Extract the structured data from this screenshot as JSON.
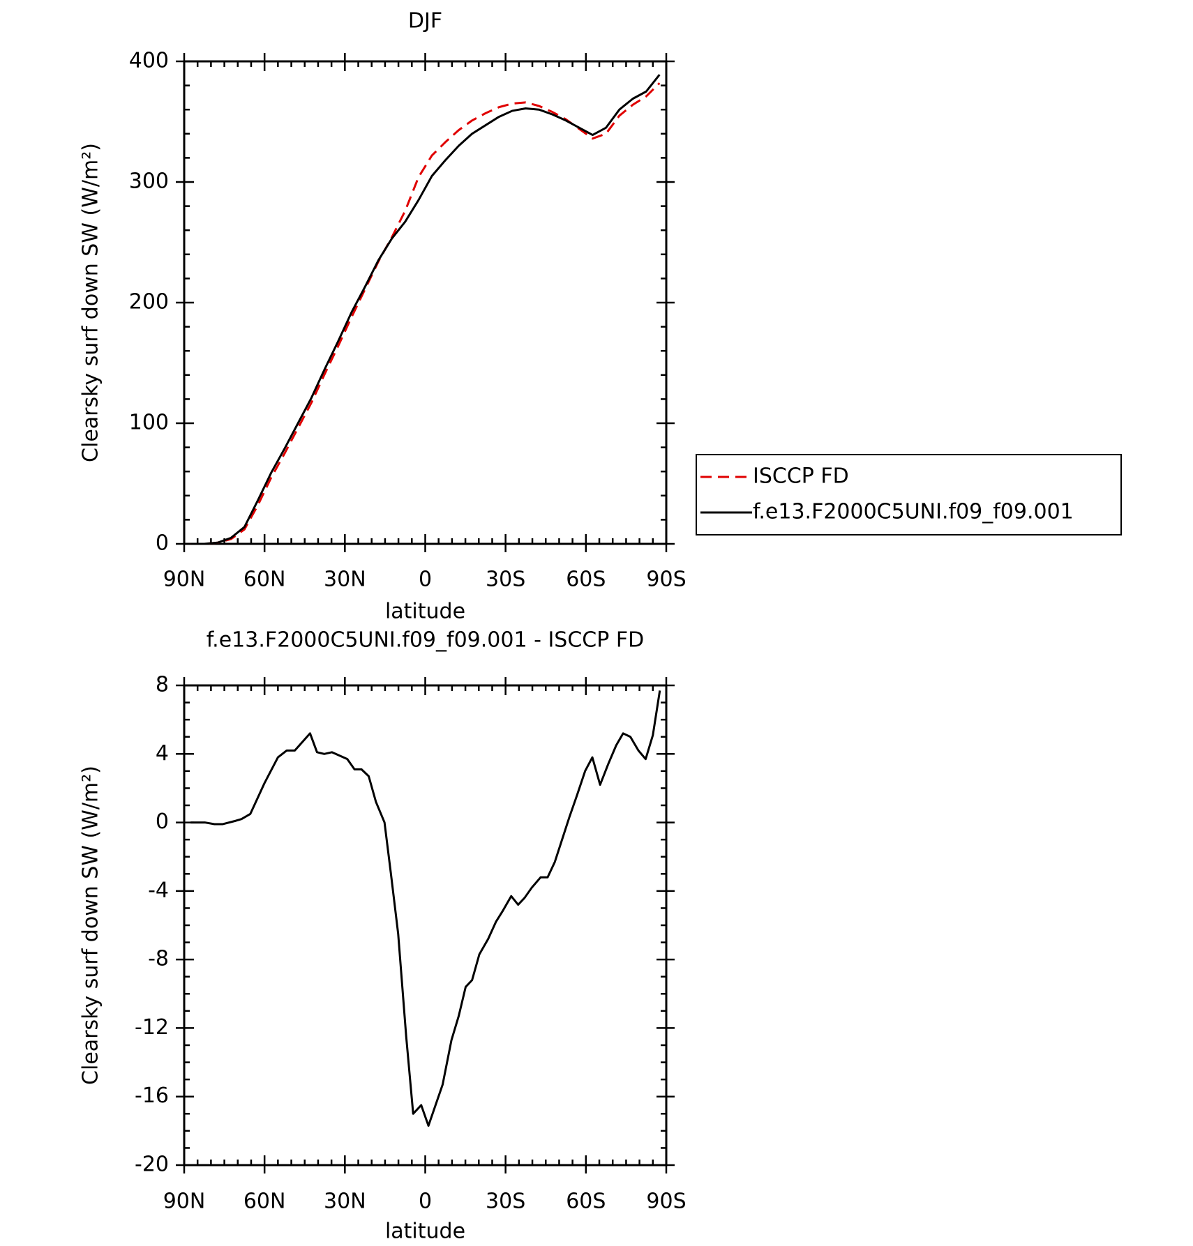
{
  "chart_data": [
    {
      "type": "line",
      "title": "DJF",
      "xlabel": "latitude",
      "ylabel": "Clearsky surf down SW (W/m²)",
      "x": [
        87.5,
        82.5,
        77.5,
        72.5,
        67.5,
        62.5,
        57.5,
        52.5,
        47.5,
        42.5,
        37.5,
        32.5,
        27.5,
        22.5,
        17.5,
        12.5,
        7.5,
        2.5,
        -2.5,
        -7.5,
        -12.5,
        -17.5,
        -22.5,
        -27.5,
        -32.5,
        -37.5,
        -42.5,
        -47.5,
        -52.5,
        -57.5,
        -62.5,
        -67.5,
        -72.5,
        -77.5,
        -82.5,
        -87.5
      ],
      "series": [
        {
          "name": "ISCCP FD",
          "color": "#e00000",
          "dash": "dashed",
          "values": [
            0,
            0,
            1,
            4,
            12,
            32,
            55,
            75,
            96,
            117,
            141,
            164,
            188,
            211,
            234,
            254,
            276,
            304,
            322,
            333,
            343,
            351,
            357,
            362,
            365,
            366,
            363,
            358,
            352,
            344,
            336,
            340,
            355,
            364,
            371,
            382
          ]
        },
        {
          "name": "f.e13.F2000C5UNI.f09_f09.001",
          "color": "#000000",
          "values": [
            0,
            0,
            1,
            5,
            14,
            36,
            59,
            79,
            100,
            121,
            145,
            168,
            192,
            213,
            235,
            253,
            267,
            285,
            305,
            318,
            330,
            340,
            347,
            354,
            359,
            361,
            360,
            356,
            351,
            345,
            339,
            345,
            360,
            369,
            375,
            389
          ]
        }
      ],
      "xlim": [
        90,
        -90
      ],
      "xticks": [
        {
          "value": 90,
          "label": "90N"
        },
        {
          "value": 60,
          "label": "60N"
        },
        {
          "value": 30,
          "label": "30N"
        },
        0,
        {
          "value": -30,
          "label": "30S"
        },
        {
          "value": -60,
          "label": "60S"
        },
        {
          "value": -90,
          "label": "90S"
        }
      ],
      "ylim": [
        0,
        400
      ],
      "yticks": [
        0,
        100,
        200,
        300,
        400
      ],
      "legend": "right"
    },
    {
      "type": "line",
      "title": "f.e13.F2000C5UNI.f09_f09.001 - ISCCP FD",
      "xlabel": "latitude",
      "ylabel": "Clearsky surf down SW (W/m²)",
      "x": [
        87.6,
        82.3,
        78.7,
        75.7,
        70.7,
        68.6,
        65.3,
        60,
        55,
        51.7,
        48.7,
        43,
        40.4,
        37.7,
        34.8,
        29.1,
        26.4,
        23.8,
        21.1,
        18.4,
        15.2,
        12.8,
        10.1,
        7.1,
        4.5,
        1.5,
        -1.2,
        -6.5,
        -9.8,
        -12.5,
        -15.1,
        -17.5,
        -20.2,
        -23.5,
        -26.4,
        -28.8,
        -32.1,
        -34.7,
        -37.1,
        -39.8,
        -43.1,
        -45.7,
        -48.4,
        -51.1,
        -53.8,
        -56.7,
        -59.7,
        -62.4,
        -65.3,
        -68.3,
        -71.3,
        -73.9,
        -76.6,
        -79.6,
        -82.3,
        -85,
        -87.6
      ],
      "color": "#000000",
      "values": [
        0,
        0,
        -0.1,
        -0.1,
        0.1,
        0.2,
        0.5,
        2.3,
        3.8,
        4.2,
        4.2,
        5.2,
        4.1,
        4,
        4.1,
        3.7,
        3.1,
        3.1,
        2.7,
        1.2,
        0,
        -3,
        -6.5,
        -12.5,
        -17,
        -16.5,
        -17.7,
        -15.3,
        -12.7,
        -11.3,
        -9.6,
        -9.2,
        -7.7,
        -6.8,
        -5.8,
        -5.2,
        -4.3,
        -4.8,
        -4.4,
        -3.8,
        -3.2,
        -3.2,
        -2.3,
        -1,
        0.3,
        1.6,
        3,
        3.8,
        2.2,
        3.4,
        4.5,
        5.2,
        5,
        4.2,
        3.7,
        5.1,
        7.7
      ],
      "xlim": [
        90,
        -90
      ],
      "xticks": [
        {
          "value": 90,
          "label": "90N"
        },
        {
          "value": 60,
          "label": "60N"
        },
        {
          "value": 30,
          "label": "30N"
        },
        0,
        {
          "value": -30,
          "label": "30S"
        },
        {
          "value": -60,
          "label": "60S"
        },
        {
          "value": -90,
          "label": "90S"
        }
      ],
      "ylim": [
        -20,
        8
      ],
      "yticks": [
        -20,
        -16,
        -12,
        -8,
        -4,
        0,
        4,
        8
      ]
    }
  ]
}
